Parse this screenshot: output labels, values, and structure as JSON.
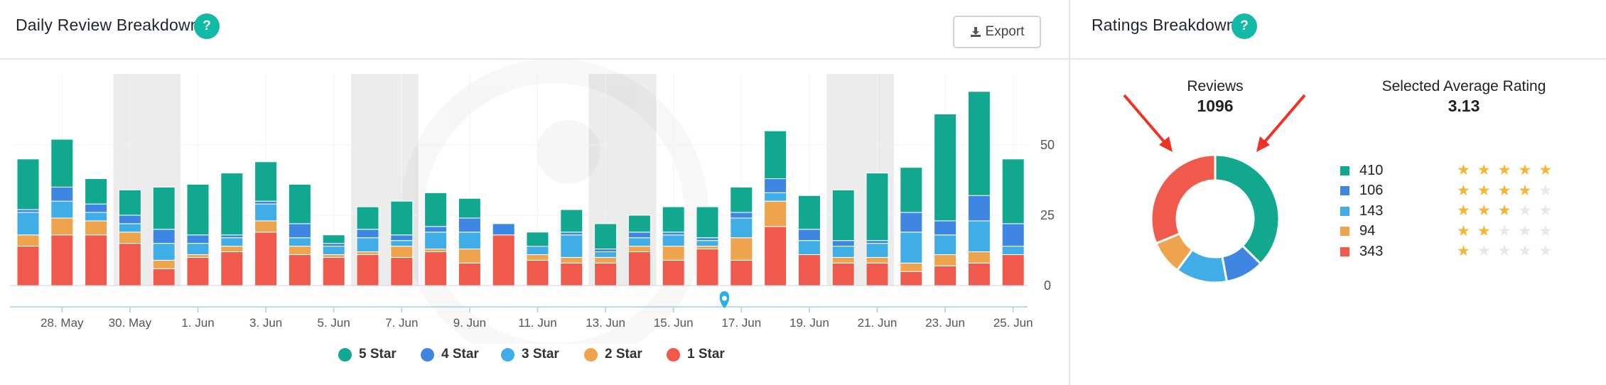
{
  "left_panel": {
    "title": "Daily Review Breakdown",
    "help_label": "?",
    "export_label": "Export",
    "export_icon": "download-icon"
  },
  "right_panel": {
    "title": "Ratings Breakdown",
    "help_label": "?",
    "reviews_label": "Reviews",
    "reviews_value": "1096",
    "avg_label": "Selected Average Rating",
    "avg_value": "3.13",
    "rows": [
      {
        "count": "410",
        "color": "#12a88f",
        "stars": 5
      },
      {
        "count": "106",
        "color": "#3f86e2",
        "stars": 4
      },
      {
        "count": "143",
        "color": "#41ade6",
        "stars": 3
      },
      {
        "count": "94",
        "color": "#eea44d",
        "stars": 2
      },
      {
        "count": "343",
        "color": "#ef5a4c",
        "stars": 1
      }
    ],
    "arrow_color": "#ee3224"
  },
  "chart_data": [
    {
      "type": "bar",
      "stacked": true,
      "title": "",
      "xlabel": "",
      "ylabel": "",
      "ylim": [
        0,
        70
      ],
      "y_ticks": [
        "0",
        "25",
        "50"
      ],
      "y_tick_values": [
        0,
        25,
        50
      ],
      "x_tick_labels": [
        "28. May",
        "30. May",
        "1. Jun",
        "3. Jun",
        "5. Jun",
        "7. Jun",
        "9. Jun",
        "11. Jun",
        "13. Jun",
        "15. Jun",
        "17. Jun",
        "19. Jun",
        "21. Jun",
        "23. Jun",
        "25. Jun"
      ],
      "x_tick_bar_index": [
        1,
        3,
        5,
        7,
        9,
        11,
        13,
        15,
        17,
        19,
        21,
        23,
        25,
        27,
        29
      ],
      "bar_count": 30,
      "weekend_bar_pairs": [
        [
          3,
          4
        ],
        [
          10,
          11
        ],
        [
          17,
          18
        ],
        [
          24,
          25
        ]
      ],
      "marker_bar_index": 20.5,
      "legend_position": "bottom",
      "series": [
        {
          "name": "1 Star",
          "color": "#ef5a4c",
          "values": [
            14,
            18,
            18,
            15,
            6,
            10,
            12,
            19,
            11,
            10,
            11,
            10,
            12,
            8,
            18,
            9,
            8,
            8,
            12,
            9,
            13,
            9,
            21,
            11,
            8,
            8,
            5,
            7,
            8,
            11
          ]
        },
        {
          "name": "2 Star",
          "color": "#eea44d",
          "values": [
            4,
            6,
            5,
            4,
            3,
            1,
            2,
            4,
            3,
            1,
            1,
            4,
            1,
            5,
            0,
            2,
            2,
            2,
            2,
            5,
            1,
            8,
            9,
            0,
            2,
            2,
            3,
            4,
            4,
            0
          ]
        },
        {
          "name": "3 Star",
          "color": "#41ade6",
          "values": [
            8,
            6,
            3,
            3,
            6,
            4,
            3,
            6,
            3,
            3,
            5,
            2,
            6,
            6,
            0,
            3,
            8,
            2,
            3,
            4,
            2,
            7,
            3,
            5,
            4,
            5,
            11,
            7,
            11,
            3
          ]
        },
        {
          "name": "4 Star",
          "color": "#3f86e2",
          "values": [
            1,
            5,
            3,
            3,
            5,
            3,
            1,
            1,
            5,
            1,
            3,
            2,
            2,
            5,
            4,
            0,
            1,
            1,
            2,
            1,
            1,
            2,
            5,
            4,
            2,
            1,
            7,
            5,
            9,
            8
          ]
        },
        {
          "name": "5 Star",
          "color": "#12a88f",
          "values": [
            18,
            17,
            9,
            9,
            15,
            18,
            22,
            14,
            14,
            3,
            8,
            12,
            12,
            7,
            0,
            5,
            8,
            9,
            6,
            9,
            11,
            9,
            17,
            12,
            18,
            24,
            16,
            38,
            37,
            23
          ]
        }
      ]
    },
    {
      "type": "pie",
      "title": "",
      "categories": [
        "5 Star",
        "4 Star",
        "3 Star",
        "2 Star",
        "1 Star"
      ],
      "values": [
        410,
        106,
        143,
        94,
        343
      ],
      "colors": [
        "#12a88f",
        "#3f86e2",
        "#41ade6",
        "#eea44d",
        "#ef5a4c"
      ]
    }
  ]
}
